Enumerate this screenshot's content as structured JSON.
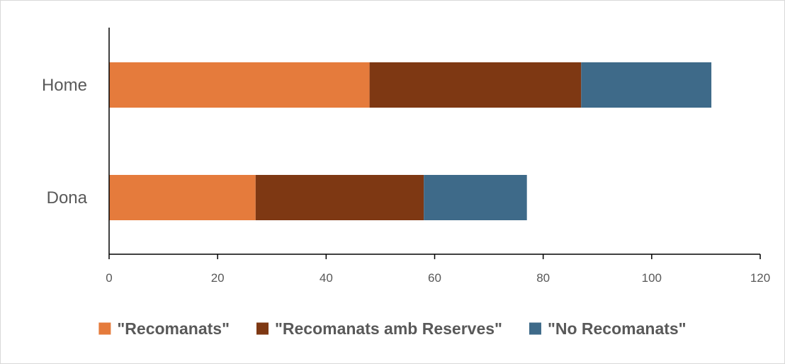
{
  "chart_data": {
    "type": "bar",
    "orientation": "horizontal",
    "stacked": true,
    "categories": [
      "Home",
      "Dona"
    ],
    "series": [
      {
        "name": "\"Recomanats\"",
        "values": [
          48,
          27
        ],
        "color": "#E57B3C"
      },
      {
        "name": "\"Recomanats amb Reserves\"",
        "values": [
          39,
          31
        ],
        "color": "#7E3813"
      },
      {
        "name": "\"No Recomanats\"",
        "values": [
          24,
          19
        ],
        "color": "#3E6A89"
      }
    ],
    "xticks": [
      "0",
      "20",
      "40",
      "60",
      "80",
      "100",
      "120"
    ],
    "xlim": [
      0,
      120
    ],
    "grid": false,
    "legend": "bottom"
  }
}
